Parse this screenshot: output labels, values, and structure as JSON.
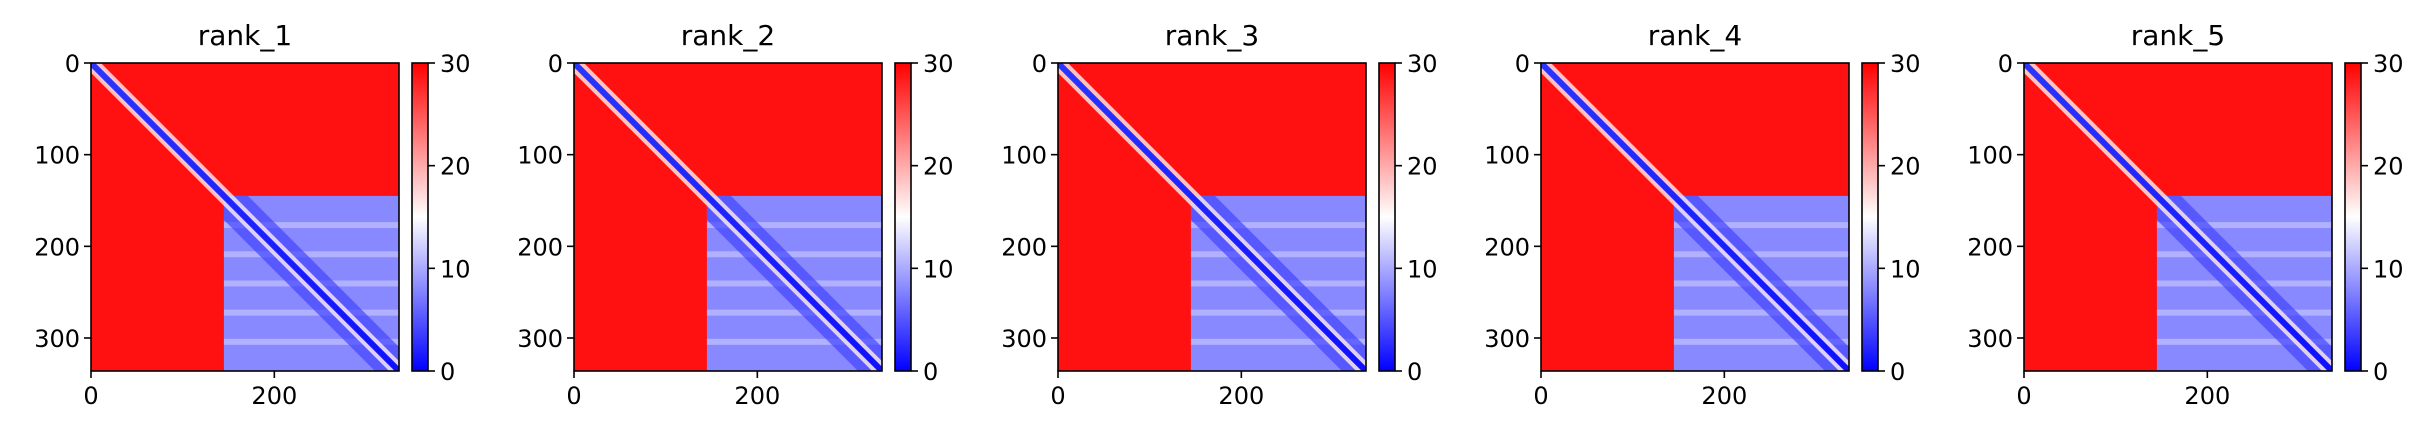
{
  "chart_data": [
    {
      "type": "heatmap",
      "title": "rank_1",
      "xlabel": "",
      "ylabel": "",
      "xlim": [
        0,
        336
      ],
      "ylim": [
        336,
        0
      ],
      "x_ticks": [
        0,
        200
      ],
      "y_ticks": [
        0,
        100,
        200,
        300
      ],
      "colorbar": {
        "min": 0,
        "max": 30,
        "ticks": [
          0,
          10,
          20,
          30
        ],
        "colormap": "bwr"
      },
      "matrix_size": 336,
      "blocks": [
        {
          "name": "domain",
          "start": 145,
          "end": 336,
          "value": 8
        },
        {
          "name": "diagonal",
          "start": 0,
          "end": 336,
          "value": 2
        }
      ],
      "background_value": 29
    },
    {
      "type": "heatmap",
      "title": "rank_2",
      "xlabel": "",
      "ylabel": "",
      "xlim": [
        0,
        336
      ],
      "ylim": [
        336,
        0
      ],
      "x_ticks": [
        0,
        200
      ],
      "y_ticks": [
        0,
        100,
        200,
        300
      ],
      "colorbar": {
        "min": 0,
        "max": 30,
        "ticks": [
          0,
          10,
          20,
          30
        ],
        "colormap": "bwr"
      },
      "matrix_size": 336,
      "blocks": [
        {
          "name": "domain",
          "start": 145,
          "end": 336,
          "value": 8
        },
        {
          "name": "diagonal",
          "start": 0,
          "end": 336,
          "value": 2
        }
      ],
      "background_value": 29
    },
    {
      "type": "heatmap",
      "title": "rank_3",
      "xlabel": "",
      "ylabel": "",
      "xlim": [
        0,
        336
      ],
      "ylim": [
        336,
        0
      ],
      "x_ticks": [
        0,
        200
      ],
      "y_ticks": [
        0,
        100,
        200,
        300
      ],
      "colorbar": {
        "min": 0,
        "max": 30,
        "ticks": [
          0,
          10,
          20,
          30
        ],
        "colormap": "bwr"
      },
      "matrix_size": 336,
      "blocks": [
        {
          "name": "domain",
          "start": 145,
          "end": 336,
          "value": 8
        },
        {
          "name": "diagonal",
          "start": 0,
          "end": 336,
          "value": 2
        }
      ],
      "background_value": 29
    },
    {
      "type": "heatmap",
      "title": "rank_4",
      "xlabel": "",
      "ylabel": "",
      "xlim": [
        0,
        336
      ],
      "ylim": [
        336,
        0
      ],
      "x_ticks": [
        0,
        200
      ],
      "y_ticks": [
        0,
        100,
        200,
        300
      ],
      "colorbar": {
        "min": 0,
        "max": 30,
        "ticks": [
          0,
          10,
          20,
          30
        ],
        "colormap": "bwr"
      },
      "matrix_size": 336,
      "blocks": [
        {
          "name": "domain",
          "start": 145,
          "end": 336,
          "value": 8
        },
        {
          "name": "diagonal",
          "start": 0,
          "end": 336,
          "value": 2
        }
      ],
      "background_value": 29
    },
    {
      "type": "heatmap",
      "title": "rank_5",
      "xlabel": "",
      "ylabel": "",
      "xlim": [
        0,
        336
      ],
      "ylim": [
        336,
        0
      ],
      "x_ticks": [
        0,
        200
      ],
      "y_ticks": [
        0,
        100,
        200,
        300
      ],
      "colorbar": {
        "min": 0,
        "max": 30,
        "ticks": [
          0,
          10,
          20,
          30
        ],
        "colormap": "bwr"
      },
      "matrix_size": 336,
      "blocks": [
        {
          "name": "domain",
          "start": 145,
          "end": 336,
          "value": 8
        },
        {
          "name": "diagonal",
          "start": 0,
          "end": 336,
          "value": 2
        }
      ],
      "background_value": 29
    }
  ],
  "colors": {
    "low": "#0000ff",
    "mid": "#ffffff",
    "high": "#ff0000"
  }
}
